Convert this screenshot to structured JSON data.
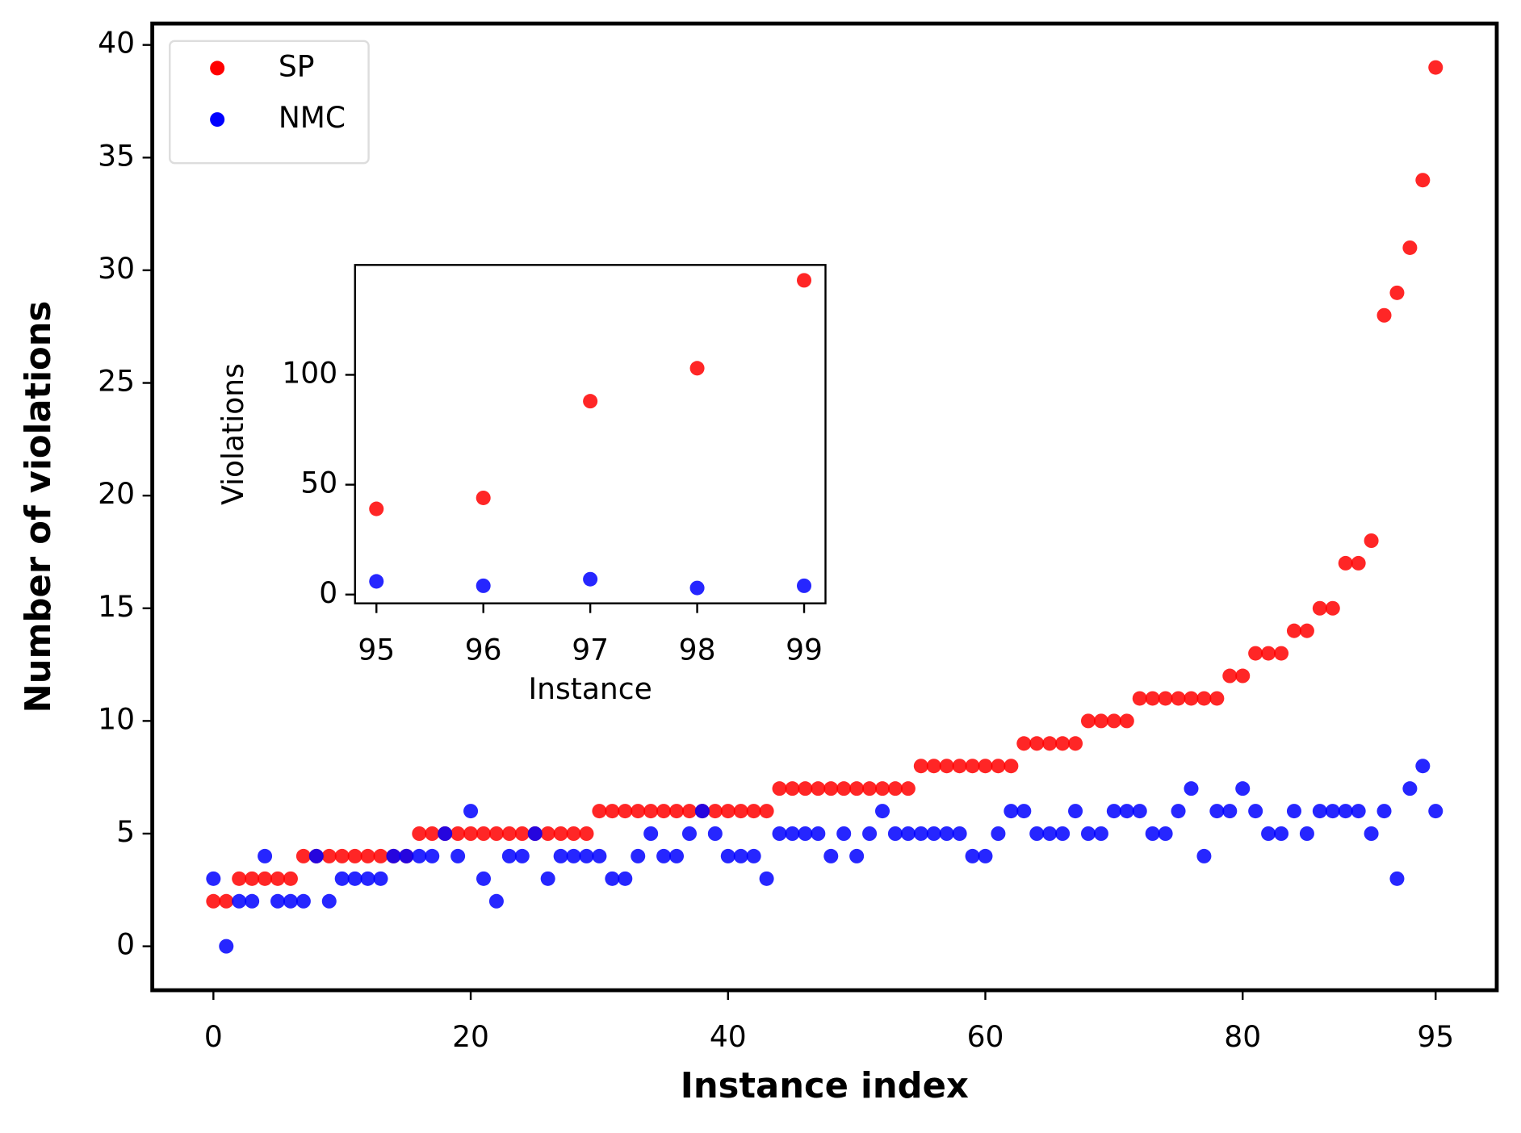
{
  "chart_data": [
    {
      "type": "scatter",
      "xlabel": "Instance index",
      "ylabel": "Number of violations",
      "x": [
        0,
        1,
        2,
        3,
        4,
        5,
        6,
        7,
        8,
        9,
        10,
        11,
        12,
        13,
        14,
        15,
        16,
        17,
        18,
        19,
        20,
        21,
        22,
        23,
        24,
        25,
        26,
        27,
        28,
        29,
        30,
        31,
        32,
        33,
        34,
        35,
        36,
        37,
        38,
        39,
        40,
        41,
        42,
        43,
        44,
        45,
        46,
        47,
        48,
        49,
        50,
        51,
        52,
        53,
        54,
        55,
        56,
        57,
        58,
        59,
        60,
        61,
        62,
        63,
        64,
        65,
        66,
        67,
        68,
        69,
        70,
        71,
        72,
        73,
        74,
        75,
        76,
        77,
        78,
        79,
        80,
        81,
        82,
        83,
        84,
        85,
        86,
        87,
        88,
        89,
        90,
        91,
        92,
        93,
        94,
        95
      ],
      "series": [
        {
          "name": "SP",
          "color": "#ff0000",
          "values": [
            2,
            2,
            3,
            3,
            3,
            3,
            3,
            4,
            4,
            4,
            4,
            4,
            4,
            4,
            4,
            4,
            5,
            5,
            5,
            5,
            5,
            5,
            5,
            5,
            5,
            5,
            5,
            5,
            5,
            5,
            6,
            6,
            6,
            6,
            6,
            6,
            6,
            6,
            6,
            6,
            6,
            6,
            6,
            6,
            7,
            7,
            7,
            7,
            7,
            7,
            7,
            7,
            7,
            7,
            7,
            8,
            8,
            8,
            8,
            8,
            8,
            8,
            8,
            9,
            9,
            9,
            9,
            9,
            10,
            10,
            10,
            10,
            11,
            11,
            11,
            11,
            11,
            11,
            11,
            12,
            12,
            13,
            13,
            13,
            14,
            14,
            15,
            15,
            17,
            17,
            18,
            28,
            29,
            31,
            34,
            39
          ]
        },
        {
          "name": "NMC",
          "color": "#0000ff",
          "values": [
            3,
            0,
            2,
            2,
            4,
            2,
            2,
            2,
            4,
            2,
            3,
            3,
            3,
            3,
            4,
            4,
            4,
            4,
            5,
            4,
            6,
            3,
            2,
            4,
            4,
            5,
            3,
            4,
            4,
            4,
            4,
            3,
            3,
            4,
            5,
            4,
            4,
            5,
            6,
            5,
            4,
            4,
            4,
            3,
            5,
            5,
            5,
            5,
            4,
            5,
            4,
            5,
            6,
            5,
            5,
            5,
            5,
            5,
            5,
            4,
            4,
            5,
            6,
            6,
            5,
            5,
            5,
            6,
            5,
            5,
            6,
            6,
            6,
            5,
            5,
            6,
            7,
            4,
            6,
            6,
            7,
            6,
            5,
            5,
            6,
            5,
            6,
            6,
            6,
            6,
            5,
            6,
            3,
            7,
            8,
            6
          ]
        }
      ],
      "xlim": [
        -4.75,
        99.75
      ],
      "ylim": [
        -1.95,
        40.95
      ],
      "xticks": [
        0,
        20,
        40,
        60,
        80,
        95
      ],
      "yticks": [
        0,
        5,
        10,
        15,
        20,
        25,
        30,
        35,
        40
      ],
      "legend": "upper left"
    },
    {
      "type": "scatter",
      "xlabel": "Instance",
      "ylabel": "Violations",
      "x": [
        95,
        96,
        97,
        98,
        99
      ],
      "series": [
        {
          "color": "#ff0000",
          "values": [
            39,
            44,
            88,
            103,
            143
          ]
        },
        {
          "color": "#0000ff",
          "values": [
            6,
            4,
            7,
            3,
            4
          ]
        }
      ],
      "xlim": [
        94.8,
        99.2
      ],
      "ylim": [
        -4,
        150
      ],
      "xticks": [
        95,
        96,
        97,
        98,
        99
      ],
      "yticks": [
        0,
        50,
        100
      ]
    }
  ]
}
